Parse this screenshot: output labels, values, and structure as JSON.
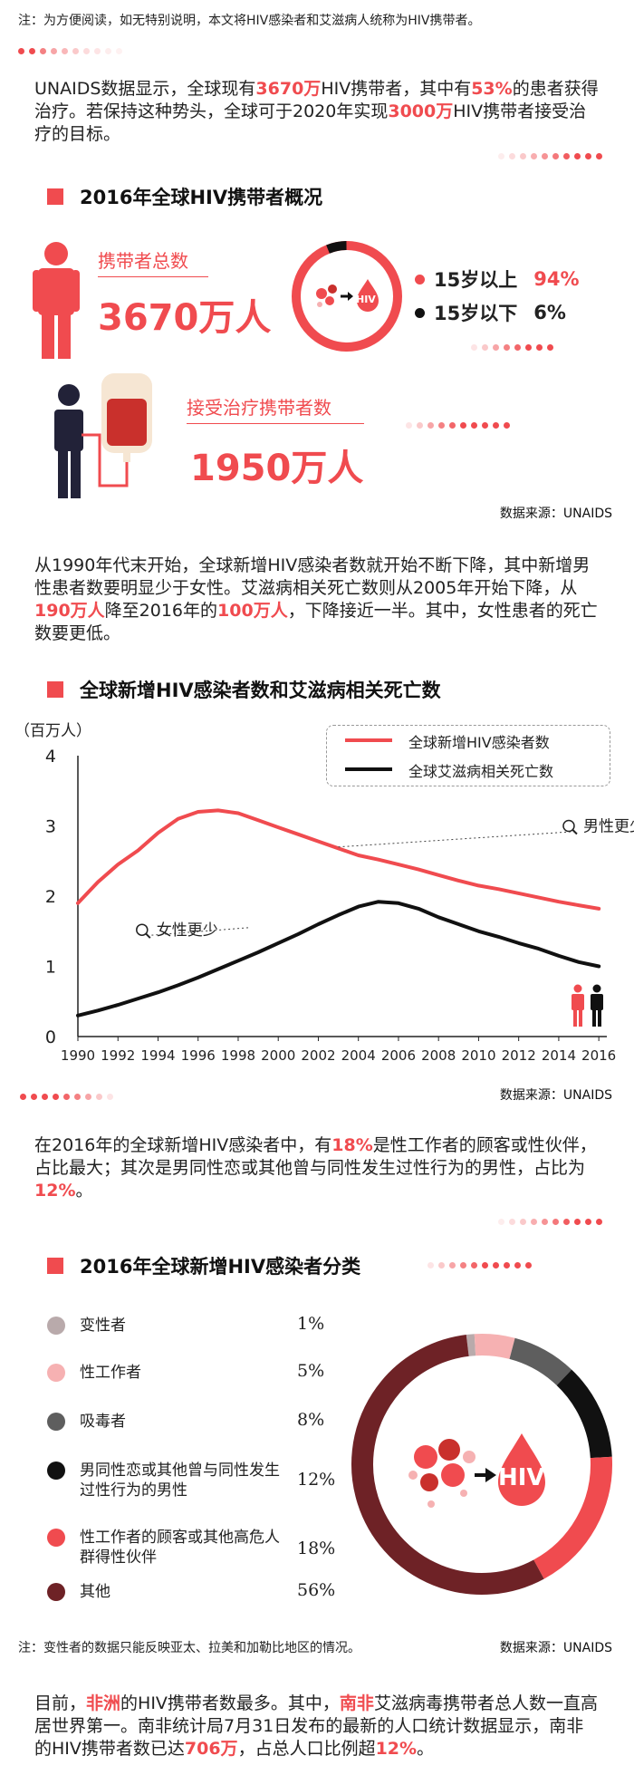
{
  "note_top": "注：为方便阅读，如无特别说明，本文将HIV感染者和艾滋病人统称为HIV携带者。",
  "intro": {
    "p1": "UNAIDS数据显示，全球现有",
    "h1": "3670万",
    "p2": "HIV携带者，其中有",
    "h2": "53%",
    "p3": "的患者获得治疗。若保持这种势头，全球可于2020年实现",
    "h3": "3000万",
    "p4": "HIV携带者接受治疗的目标。"
  },
  "section1": {
    "title": "2016年全球HIV携带者概况",
    "total_label": "携带者总数",
    "total_value": "3670万人",
    "hiv_label": "HIV",
    "age_over_label": "15岁以上",
    "age_over_pct": "94%",
    "age_under_label": "15岁以下",
    "age_under_pct": "6%",
    "treated_label": "接受治疗携带者数",
    "treated_value": "1950万人",
    "source": "数据来源：UNAIDS"
  },
  "para2": {
    "p1": "从1990年代末开始，全球新增HIV感染者数就开始不断下降，其中新增男性患者数要明显少于女性。艾滋病相关死亡数则从2005年开始下降，从",
    "h1": "190万人",
    "p2": "降至2016年的",
    "h2": "100万人",
    "p3": "，下降接近一半。其中，女性患者的死亡数要更低。"
  },
  "section2": {
    "title": "全球新增HIV感染者数和艾滋病相关死亡数",
    "source": "数据来源：UNAIDS"
  },
  "chart_data": {
    "type": "line",
    "ylabel": "（百万人）",
    "ylim": [
      0,
      4
    ],
    "yticks": [
      "0",
      "1",
      "2",
      "3",
      "4"
    ],
    "x_tick_labels": [
      "1990",
      "1992",
      "1994",
      "1996",
      "1998",
      "2000",
      "2002",
      "2004",
      "2006",
      "2008",
      "2010",
      "2012",
      "2014",
      "2016"
    ],
    "x": [
      1990,
      1991,
      1992,
      1993,
      1994,
      1995,
      1996,
      1997,
      1998,
      1999,
      2000,
      2001,
      2002,
      2003,
      2004,
      2005,
      2006,
      2007,
      2008,
      2009,
      2010,
      2011,
      2012,
      2013,
      2014,
      2015,
      2016
    ],
    "series": [
      {
        "name": "全球新增HIV感染者数",
        "color": "#f04b4f",
        "values": [
          1.9,
          2.2,
          2.45,
          2.65,
          2.9,
          3.1,
          3.2,
          3.22,
          3.18,
          3.08,
          2.98,
          2.88,
          2.78,
          2.68,
          2.58,
          2.52,
          2.45,
          2.38,
          2.3,
          2.22,
          2.15,
          2.1,
          2.04,
          1.98,
          1.92,
          1.87,
          1.82
        ]
      },
      {
        "name": "全球艾滋病相关死亡数",
        "color": "#111111",
        "values": [
          0.3,
          0.37,
          0.45,
          0.54,
          0.63,
          0.73,
          0.84,
          0.96,
          1.08,
          1.2,
          1.33,
          1.46,
          1.6,
          1.73,
          1.85,
          1.92,
          1.9,
          1.82,
          1.7,
          1.6,
          1.5,
          1.42,
          1.33,
          1.25,
          1.15,
          1.06,
          1.0
        ]
      }
    ],
    "annotations": [
      "男性更少",
      "女性更少"
    ]
  },
  "para3": {
    "p1": "在2016年的全球新增HIV感染者中，有",
    "h1": "18%",
    "p2": "是性工作者的顾客或性伙伴，占比最大；其次是男同性恋或其他曾与同性发生过性行为的男性，占比为",
    "h2": "12%",
    "p3": "。"
  },
  "section3": {
    "title": "2016年全球新增HIV感染者分类",
    "hiv_label": "HIV",
    "note": "注：变性者的数据只能反映亚太、拉美和加勒比地区的情况。",
    "source": "数据来源：UNAIDS",
    "categories": [
      {
        "label": "变性者",
        "pct": "1%",
        "value": 1,
        "color": "#b9aaab"
      },
      {
        "label": "性工作者",
        "pct": "5%",
        "value": 5,
        "color": "#f6b1b2"
      },
      {
        "label": "吸毒者",
        "pct": "8%",
        "value": 8,
        "color": "#5e5e5e"
      },
      {
        "label": "男同性恋或其他曾与同性发生过性行为的男性",
        "pct": "12%",
        "value": 12,
        "color": "#111111"
      },
      {
        "label": "性工作者的顾客或其他高危人群得性伙伴",
        "pct": "18%",
        "value": 18,
        "color": "#f04b4f"
      },
      {
        "label": "其他",
        "pct": "56%",
        "value": 56,
        "color": "#6e2226"
      }
    ]
  },
  "para4": {
    "p1": "目前，",
    "h1": "非洲",
    "p2": "的HIV携带者数最多。其中，",
    "h2": "南非",
    "p3": "艾滋病毒携带者总人数一直高居世界第一。南非统计局7月31日发布的最新的人口统计数据显示，南非的HIV携带者数已达",
    "h3": "706万",
    "p4": "，占总人口比例超",
    "h4": "12%",
    "p5": "。"
  }
}
